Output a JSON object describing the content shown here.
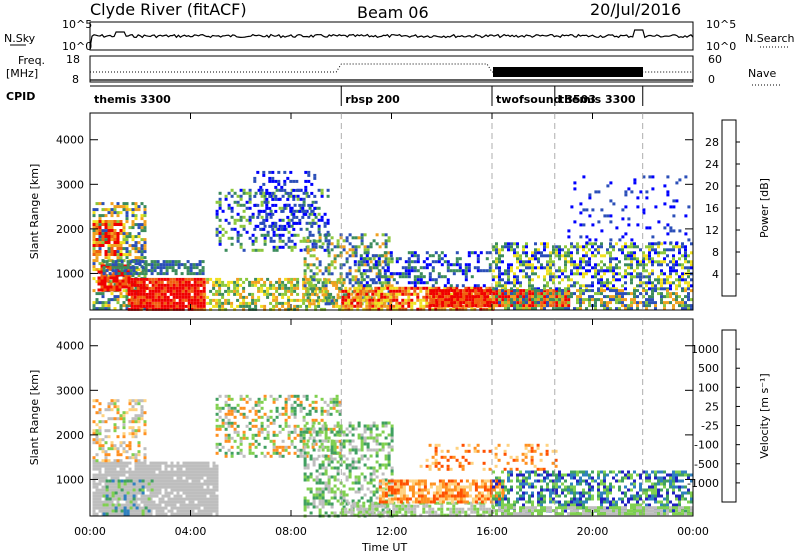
{
  "header": {
    "station": "Clyde River (fitACF)",
    "beam": "Beam 06",
    "date": "20/Jul/2016"
  },
  "strip_labels": {
    "nsky": "N.Sky",
    "nsearch": "N.Search",
    "freq": "Freq.",
    "freq_unit": "[MHz]",
    "nave": "Nave",
    "cpid": "CPID",
    "nsky_ticks": [
      "10^5",
      "10^0"
    ],
    "nsearch_ticks": [
      "10^5",
      "10^0"
    ],
    "freq_ticks": [
      "18",
      "8"
    ],
    "nave_ticks": [
      "60",
      "0"
    ]
  },
  "colors": {
    "power_scale": [
      "#0000ff",
      "#2b4fb8",
      "#3c8c5c",
      "#8cc83c",
      "#f0e020",
      "#f0a020",
      "#f06010",
      "#f00000"
    ],
    "velocity_scale": [
      "#ff0000",
      "#ff5000",
      "#ff9020",
      "#ffd27f",
      "#bebebe",
      "#80d050",
      "#40a060",
      "#3080c0",
      "#2020c0"
    ]
  },
  "chart_data": {
    "type": "heatmap",
    "x_label": "Time UT",
    "x_ticks": [
      "00:00",
      "04:00",
      "08:00",
      "12:00",
      "16:00",
      "20:00",
      "00:00"
    ],
    "x_range_hours": [
      0,
      24
    ],
    "y_label": "Slant Range [km]",
    "y_ticks": [
      1000,
      2000,
      3000,
      4000
    ],
    "y_range_km": [
      180,
      4600
    ],
    "cpid_segments": [
      {
        "start_h": 0,
        "end_h": 10,
        "label": "themis 3300"
      },
      {
        "start_h": 10,
        "end_h": 16,
        "label": "rbsp 200"
      },
      {
        "start_h": 16,
        "end_h": 18.5,
        "label": "twofsound 3503"
      },
      {
        "start_h": 18.5,
        "end_h": 22,
        "label": "themis 3300"
      },
      {
        "start_h": 22,
        "end_h": 24,
        "label": ""
      }
    ],
    "power": {
      "colorbar_label": "Power [dB]",
      "colorbar_ticks": [
        4,
        8,
        12,
        16,
        20,
        24,
        28
      ],
      "range": [
        0,
        32
      ]
    },
    "velocity": {
      "colorbar_label": "Velocity [m s⁻¹]",
      "colorbar_ticks": [
        "1000",
        "500",
        "100",
        "25",
        "-25",
        "-100",
        "-500",
        "-1000"
      ]
    }
  }
}
